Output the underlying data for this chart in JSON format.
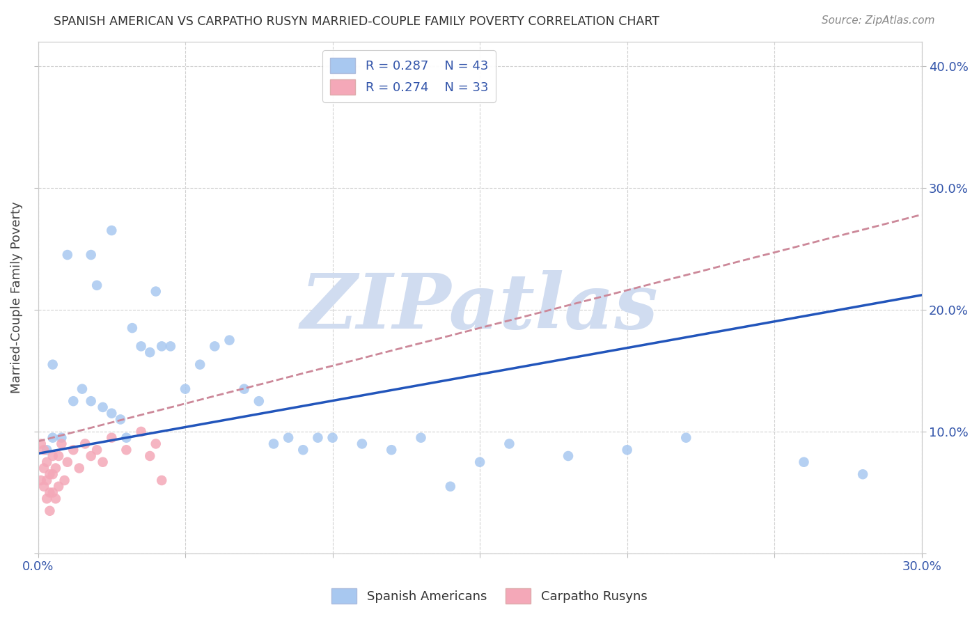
{
  "title": "SPANISH AMERICAN VS CARPATHO RUSYN MARRIED-COUPLE FAMILY POVERTY CORRELATION CHART",
  "source": "Source: ZipAtlas.com",
  "ylabel": "Married-Couple Family Poverty",
  "xlim": [
    0.0,
    0.3
  ],
  "ylim": [
    0.0,
    0.42
  ],
  "xticks": [
    0.0,
    0.05,
    0.1,
    0.15,
    0.2,
    0.25,
    0.3
  ],
  "xticklabels": [
    "0.0%",
    "",
    "",
    "",
    "",
    "",
    "30.0%"
  ],
  "yticks": [
    0.0,
    0.1,
    0.2,
    0.3,
    0.4
  ],
  "yticklabels_right": [
    "",
    "10.0%",
    "20.0%",
    "30.0%",
    "40.0%"
  ],
  "R_blue": 0.287,
  "N_blue": 43,
  "R_pink": 0.274,
  "N_pink": 33,
  "legend_label_blue": "Spanish Americans",
  "legend_label_pink": "Carpatho Rusyns",
  "blue_color": "#A8C8F0",
  "pink_color": "#F4A8B8",
  "blue_line_color": "#2255BB",
  "pink_line_color": "#CC8899",
  "watermark": "ZIPatlas",
  "watermark_color": "#D0DCF0",
  "background_color": "#FFFFFF",
  "blue_line_x0": 0.0,
  "blue_line_y0": 0.082,
  "blue_line_x1": 0.3,
  "blue_line_y1": 0.212,
  "pink_line_x0": 0.0,
  "pink_line_y0": 0.092,
  "pink_line_x1": 0.3,
  "pink_line_y1": 0.278,
  "blue_x": [
    0.003,
    0.005,
    0.005,
    0.008,
    0.01,
    0.012,
    0.015,
    0.018,
    0.018,
    0.02,
    0.022,
    0.025,
    0.025,
    0.028,
    0.03,
    0.032,
    0.035,
    0.038,
    0.04,
    0.042,
    0.045,
    0.05,
    0.055,
    0.06,
    0.065,
    0.07,
    0.075,
    0.08,
    0.085,
    0.09,
    0.095,
    0.1,
    0.11,
    0.12,
    0.13,
    0.14,
    0.15,
    0.16,
    0.18,
    0.2,
    0.22,
    0.26,
    0.28
  ],
  "blue_y": [
    0.085,
    0.155,
    0.095,
    0.095,
    0.245,
    0.125,
    0.135,
    0.125,
    0.245,
    0.22,
    0.12,
    0.115,
    0.265,
    0.11,
    0.095,
    0.185,
    0.17,
    0.165,
    0.215,
    0.17,
    0.17,
    0.135,
    0.155,
    0.17,
    0.175,
    0.135,
    0.125,
    0.09,
    0.095,
    0.085,
    0.095,
    0.095,
    0.09,
    0.085,
    0.095,
    0.055,
    0.075,
    0.09,
    0.08,
    0.085,
    0.095,
    0.075,
    0.065
  ],
  "pink_x": [
    0.001,
    0.001,
    0.002,
    0.002,
    0.002,
    0.003,
    0.003,
    0.003,
    0.004,
    0.004,
    0.004,
    0.005,
    0.005,
    0.005,
    0.006,
    0.006,
    0.007,
    0.007,
    0.008,
    0.009,
    0.01,
    0.012,
    0.014,
    0.016,
    0.018,
    0.02,
    0.022,
    0.025,
    0.03,
    0.035,
    0.038,
    0.04,
    0.042
  ],
  "pink_y": [
    0.09,
    0.06,
    0.085,
    0.07,
    0.055,
    0.075,
    0.06,
    0.045,
    0.065,
    0.05,
    0.035,
    0.08,
    0.065,
    0.05,
    0.07,
    0.045,
    0.08,
    0.055,
    0.09,
    0.06,
    0.075,
    0.085,
    0.07,
    0.09,
    0.08,
    0.085,
    0.075,
    0.095,
    0.085,
    0.1,
    0.08,
    0.09,
    0.06
  ]
}
